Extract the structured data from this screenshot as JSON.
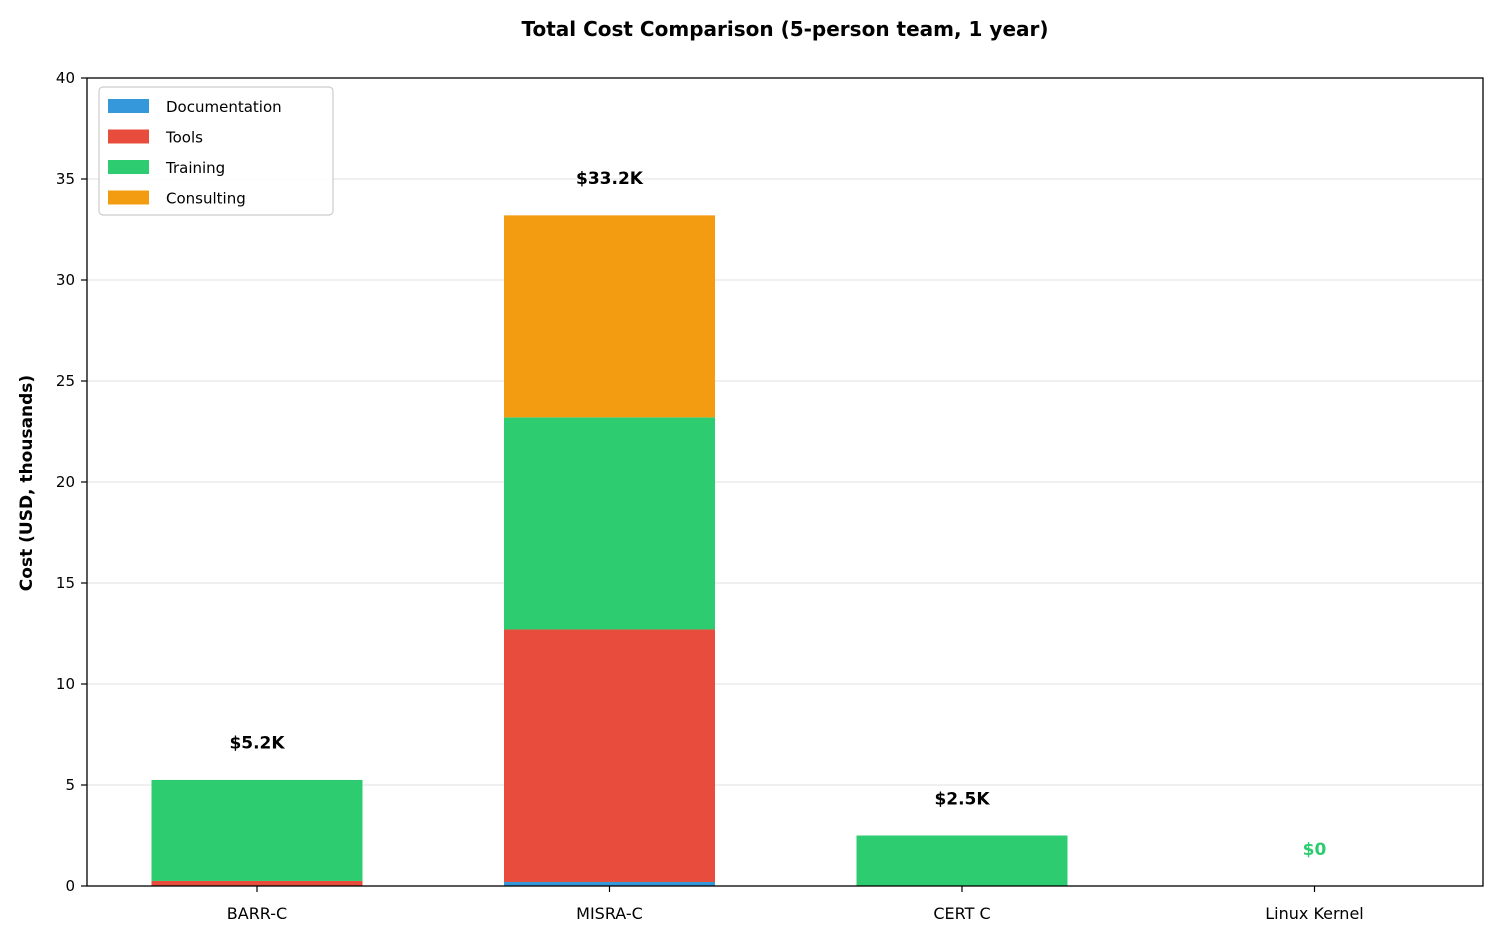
{
  "chart_data": {
    "type": "bar",
    "stacked": true,
    "title": "Total Cost Comparison (5-person team, 1 year)",
    "xlabel": "",
    "ylabel": "Cost (USD, thousands)",
    "ylim": [
      0,
      40
    ],
    "yticks": [
      0,
      5,
      10,
      15,
      20,
      25,
      30,
      35,
      40
    ],
    "grid": "y",
    "legend_position": "top-left",
    "categories": [
      "BARR-C",
      "MISRA-C",
      "CERT C",
      "Linux Kernel"
    ],
    "series": [
      {
        "name": "Documentation",
        "color": "#3498db",
        "values": [
          0,
          0.2,
          0,
          0
        ]
      },
      {
        "name": "Tools",
        "color": "#e74c3c",
        "values": [
          0.25,
          12.5,
          0,
          0
        ]
      },
      {
        "name": "Training",
        "color": "#2ecc71",
        "values": [
          5.0,
          10.5,
          2.5,
          0
        ]
      },
      {
        "name": "Consulting",
        "color": "#f39c12",
        "values": [
          0,
          10.0,
          0,
          0
        ]
      }
    ],
    "total_labels": [
      {
        "text": "$5.2K",
        "color": "#000000"
      },
      {
        "text": "$33.2K",
        "color": "#000000"
      },
      {
        "text": "$2.5K",
        "color": "#000000"
      },
      {
        "text": "$0",
        "color": "#2ecc71"
      }
    ]
  }
}
